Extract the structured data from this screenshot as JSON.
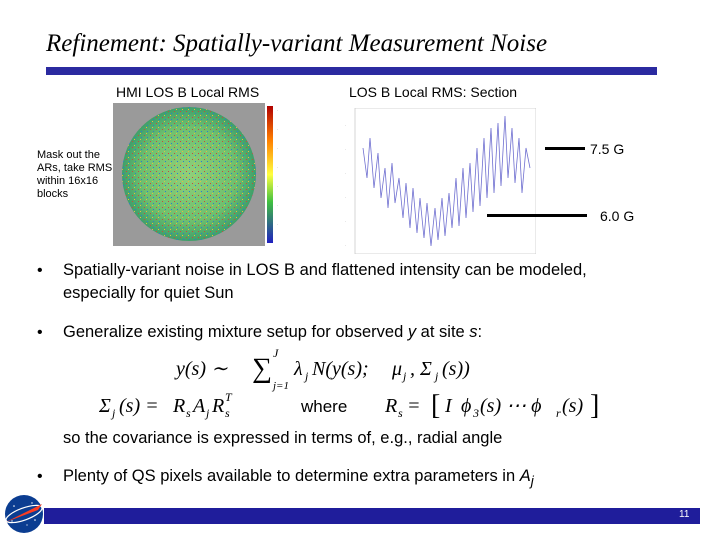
{
  "slide": {
    "title": "Refinement: Spatially-variant Measurement Noise",
    "page_number": "11"
  },
  "panels": {
    "left_caption": "HMI LOS B Local RMS",
    "right_caption": "LOS B Local RMS: Section",
    "mask_note": "Mask out the ARs, take RMS within 16x16 blocks",
    "label_high": "7.5 G",
    "label_low": "6.0 G"
  },
  "bullets": {
    "b1": "Spatially-variant noise in LOS B and flattened intensity can be modeled, especially for quiet Sun",
    "b2_pre": "Generalize existing mixture setup for observed ",
    "b2_y": "y",
    "b2_mid": " at site ",
    "b2_s": "s",
    "b2_post": ":",
    "b2_followup": "so the covariance is expressed in terms of, e.g., radial angle",
    "b3_pre": "Plenty of QS pixels available to determine extra parameters in ",
    "b3_A": "A",
    "b3_sub": "j"
  },
  "equations": {
    "mixture": "y(s) ~ Σ_{j=1}^{J} λ_j N(y(s); μ_j, Σ_j(s))",
    "covariance": "Σ_j(s) = R_s A_j R_s^T where R_s = [I φ_3(s) ⋯ φ_r(s)]"
  },
  "colors": {
    "accent_bar": "#2b2aa0",
    "footer_bar": "#1f1d9b"
  },
  "icons": {
    "bullet": "bullet-dot",
    "logo": "nasa-logo"
  }
}
